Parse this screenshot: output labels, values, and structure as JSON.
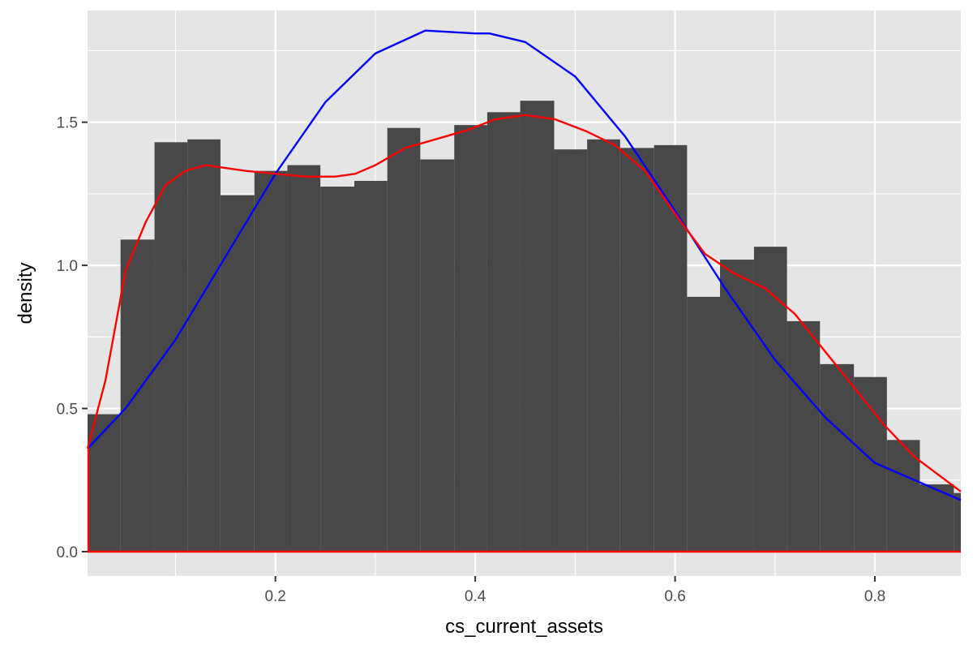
{
  "chart_data": {
    "type": "bar",
    "title": "",
    "xlabel": "cs_current_assets",
    "ylabel": "density",
    "xlim": [
      0.012,
      0.886
    ],
    "ylim": [
      -0.085,
      1.89
    ],
    "x_ticks": [
      0.2,
      0.4,
      0.6,
      0.8
    ],
    "x_tick_labels": [
      "0.2",
      "0.4",
      "0.6",
      "0.8"
    ],
    "y_ticks": [
      0.0,
      0.5,
      1.0,
      1.5
    ],
    "y_tick_labels": [
      "0.0",
      "0.5",
      "1.0",
      "1.5"
    ],
    "grid": true,
    "bin_width": 0.0333,
    "bins": [
      {
        "x0": 0.012,
        "x1": 0.045,
        "value": 0.48
      },
      {
        "x0": 0.045,
        "x1": 0.079,
        "value": 1.09
      },
      {
        "x0": 0.079,
        "x1": 0.112,
        "value": 1.43
      },
      {
        "x0": 0.112,
        "x1": 0.145,
        "value": 1.44
      },
      {
        "x0": 0.145,
        "x1": 0.179,
        "value": 1.245
      },
      {
        "x0": 0.179,
        "x1": 0.212,
        "value": 1.33
      },
      {
        "x0": 0.212,
        "x1": 0.245,
        "value": 1.35
      },
      {
        "x0": 0.245,
        "x1": 0.279,
        "value": 1.275
      },
      {
        "x0": 0.279,
        "x1": 0.312,
        "value": 1.295
      },
      {
        "x0": 0.312,
        "x1": 0.345,
        "value": 1.48
      },
      {
        "x0": 0.345,
        "x1": 0.379,
        "value": 1.37
      },
      {
        "x0": 0.379,
        "x1": 0.412,
        "value": 1.49
      },
      {
        "x0": 0.412,
        "x1": 0.445,
        "value": 1.535
      },
      {
        "x0": 0.445,
        "x1": 0.479,
        "value": 1.575
      },
      {
        "x0": 0.479,
        "x1": 0.512,
        "value": 1.405
      },
      {
        "x0": 0.512,
        "x1": 0.545,
        "value": 1.44
      },
      {
        "x0": 0.545,
        "x1": 0.579,
        "value": 1.41
      },
      {
        "x0": 0.579,
        "x1": 0.612,
        "value": 1.42
      },
      {
        "x0": 0.612,
        "x1": 0.645,
        "value": 0.89
      },
      {
        "x0": 0.645,
        "x1": 0.679,
        "value": 1.02
      },
      {
        "x0": 0.679,
        "x1": 0.712,
        "value": 1.065
      },
      {
        "x0": 0.712,
        "x1": 0.745,
        "value": 0.805
      },
      {
        "x0": 0.745,
        "x1": 0.779,
        "value": 0.655
      },
      {
        "x0": 0.779,
        "x1": 0.812,
        "value": 0.61
      },
      {
        "x0": 0.812,
        "x1": 0.845,
        "value": 0.39
      },
      {
        "x0": 0.845,
        "x1": 0.879,
        "value": 0.235
      },
      {
        "x0": 0.879,
        "x1": 0.912,
        "value": 0.205
      }
    ],
    "series": [
      {
        "type": "line",
        "color": "#ff0000",
        "x": [
          0.012,
          0.03,
          0.05,
          0.07,
          0.09,
          0.11,
          0.13,
          0.15,
          0.17,
          0.2,
          0.23,
          0.26,
          0.28,
          0.3,
          0.33,
          0.36,
          0.39,
          0.42,
          0.45,
          0.48,
          0.51,
          0.54,
          0.57,
          0.6,
          0.63,
          0.66,
          0.69,
          0.72,
          0.75,
          0.78,
          0.81,
          0.84,
          0.886
        ],
        "y": [
          0.36,
          0.6,
          0.98,
          1.15,
          1.28,
          1.33,
          1.35,
          1.34,
          1.33,
          1.32,
          1.31,
          1.31,
          1.32,
          1.35,
          1.41,
          1.44,
          1.47,
          1.51,
          1.525,
          1.51,
          1.47,
          1.42,
          1.33,
          1.18,
          1.04,
          0.97,
          0.92,
          0.83,
          0.7,
          0.57,
          0.44,
          0.33,
          0.21
        ]
      },
      {
        "type": "line",
        "color": "#0000ff",
        "x": [
          0.012,
          0.05,
          0.1,
          0.15,
          0.2,
          0.25,
          0.3,
          0.35,
          0.4,
          0.414,
          0.45,
          0.5,
          0.55,
          0.6,
          0.65,
          0.7,
          0.75,
          0.8,
          0.886
        ],
        "y": [
          0.36,
          0.5,
          0.74,
          1.03,
          1.32,
          1.57,
          1.74,
          1.82,
          1.81,
          1.81,
          1.78,
          1.66,
          1.45,
          1.19,
          0.92,
          0.67,
          0.47,
          0.31,
          0.18
        ]
      }
    ],
    "colors": {
      "panel": "#e5e5e5",
      "grid_major": "#ffffff",
      "bars": "#474747",
      "baseline": "#ff0000"
    }
  }
}
